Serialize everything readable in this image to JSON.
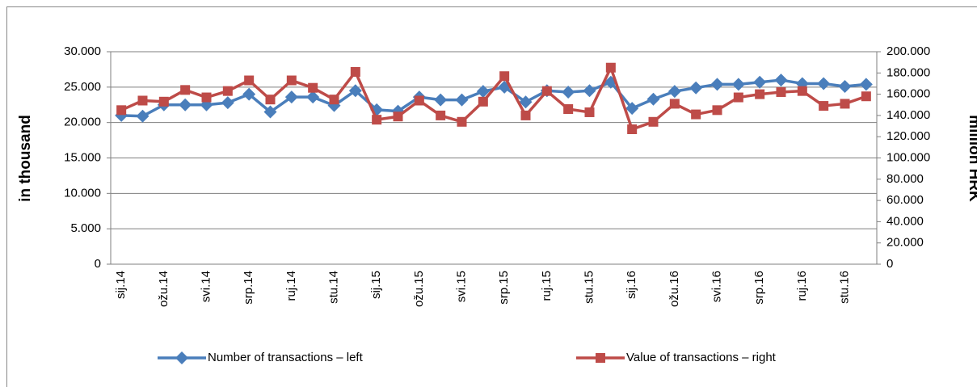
{
  "chart_data": {
    "type": "line",
    "y_label": "in thousand",
    "y2_label": "million HRK",
    "categories": [
      "sij.14",
      null,
      "ožu.14",
      null,
      "svi.14",
      null,
      "srp.14",
      null,
      "ruj.14",
      null,
      "stu.14",
      null,
      "sij.15",
      null,
      "ožu.15",
      null,
      "svi.15",
      null,
      "srp.15",
      null,
      "ruj.15",
      null,
      "stu.15",
      null,
      "sij.16",
      null,
      "ožu.16",
      null,
      "svi.16",
      null,
      "srp.16",
      null,
      "ruj.16",
      null,
      "stu.16",
      null
    ],
    "series": [
      {
        "name": "Number of transactions – left",
        "color": "#4a7ebb",
        "axis": "y",
        "marker": "diamond",
        "values": [
          21000,
          20900,
          22500,
          22500,
          22500,
          22800,
          24000,
          21500,
          23600,
          23600,
          22400,
          24500,
          21800,
          21600,
          23600,
          23200,
          23200,
          24400,
          25000,
          22900,
          24500,
          24300,
          24500,
          25700,
          22000,
          23300,
          24400,
          24900,
          25400,
          25400,
          25700,
          26000,
          25500,
          25500,
          25100,
          25400
        ]
      },
      {
        "name": "Value of transactions – right",
        "color": "#be4b48",
        "axis": "y2",
        "marker": "square",
        "values": [
          145000,
          154000,
          153000,
          164000,
          157000,
          163000,
          173000,
          155000,
          173000,
          166000,
          155000,
          181000,
          136000,
          139000,
          154000,
          140000,
          134000,
          153000,
          177000,
          140000,
          163000,
          146000,
          143000,
          185000,
          127000,
          134000,
          151000,
          141000,
          145000,
          157000,
          160000,
          162000,
          163000,
          149000,
          151000,
          158000
        ]
      }
    ],
    "ylim": [
      0,
      30000
    ],
    "yticks": [
      0,
      {
        "value": 5000,
        "label": "5.000"
      },
      {
        "value": 10000,
        "label": "10.000"
      },
      {
        "value": 15000,
        "label": "15.000"
      },
      {
        "value": 20000,
        "label": "20.000"
      },
      {
        "value": 25000,
        "label": "25.000"
      },
      {
        "value": 30000,
        "label": "30.000"
      }
    ],
    "y2lim": [
      0,
      200000
    ],
    "y2ticks": [
      0,
      {
        "value": 20000,
        "label": "20.000"
      },
      {
        "value": 40000,
        "label": "40.000"
      },
      {
        "value": 60000,
        "label": "60.000"
      },
      {
        "value": 80000,
        "label": "80.000"
      },
      {
        "value": 100000,
        "label": "100.000"
      },
      {
        "value": 120000,
        "label": "120.000"
      },
      {
        "value": 140000,
        "label": "140.000"
      },
      {
        "value": 160000,
        "label": "160.000"
      },
      {
        "value": 180000,
        "label": "180.000"
      },
      {
        "value": 200000,
        "label": "200.000"
      }
    ],
    "grid": true,
    "legend": "bottom"
  }
}
